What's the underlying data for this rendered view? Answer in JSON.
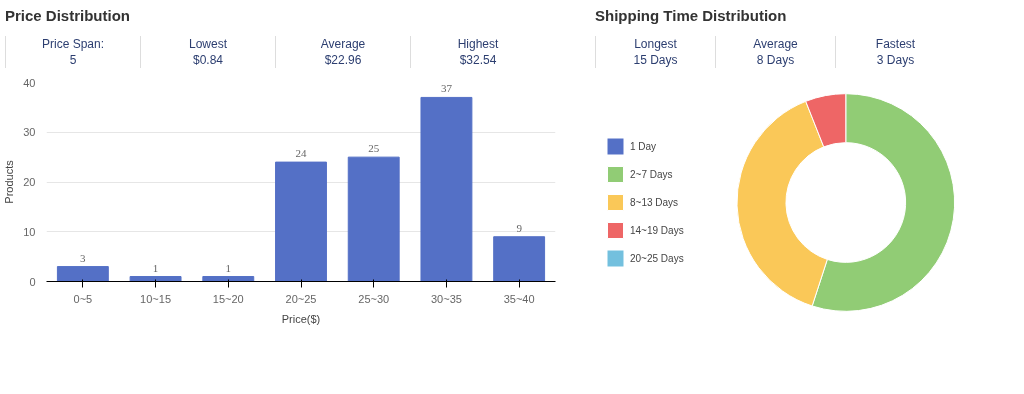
{
  "chart_data": [
    {
      "type": "bar",
      "title": "Price Distribution",
      "ylabel": "Products",
      "xlabel": "Price($)",
      "categories": [
        "0~5",
        "10~15",
        "15~20",
        "20~25",
        "25~30",
        "30~35",
        "35~40"
      ],
      "values": [
        3,
        1,
        1,
        24,
        25,
        37,
        9
      ],
      "color": "#5470c6",
      "ylim": [
        0,
        40
      ],
      "yticks": [
        0,
        10,
        20,
        30,
        40
      ],
      "grid": "y",
      "data_labels": true,
      "annotations": [
        "Price Span:",
        "5",
        "Lowest",
        "$0.84",
        "Average",
        "$22.96",
        "Highest",
        "$32.54"
      ]
    },
    {
      "type": "donut",
      "title": "Shipping Time Distribution",
      "categories": [
        "1 Day",
        "2~7 Days",
        "8~13 Days",
        "14~19 Days",
        "20~25 Days"
      ],
      "values": [
        0,
        55,
        39,
        6,
        0
      ],
      "colors": [
        "#5470c6",
        "#91cc75",
        "#fac858",
        "#ee6666",
        "#73c0de"
      ],
      "legend": "left",
      "annotations": [
        "Longest",
        "15 Days",
        "Average",
        "8 Days",
        "Fastest",
        "3 Days"
      ]
    }
  ]
}
